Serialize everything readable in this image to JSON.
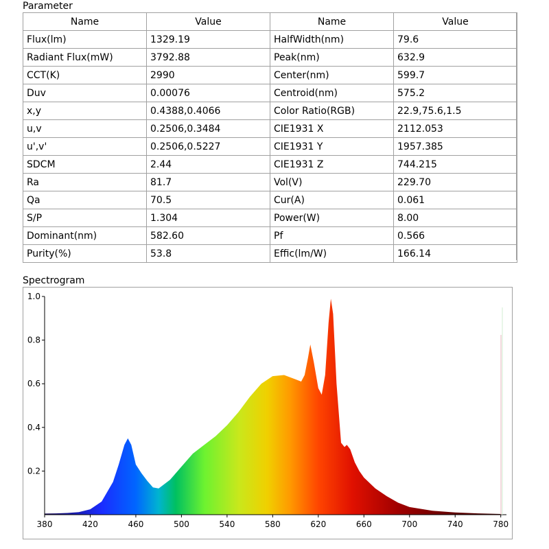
{
  "parameter_title": "Parameter",
  "spectrogram_title": "Spectrogram",
  "table": {
    "headers": [
      "Name",
      "Value",
      "Name",
      "Value"
    ],
    "rows": [
      [
        "Flux(lm)",
        "1329.19",
        "HalfWidth(nm)",
        "79.6"
      ],
      [
        "Radiant Flux(mW)",
        "3792.88",
        "Peak(nm)",
        "632.9"
      ],
      [
        "CCT(K)",
        "2990",
        "Center(nm)",
        "599.7"
      ],
      [
        "Duv",
        "0.00076",
        "Centroid(nm)",
        "575.2"
      ],
      [
        "x,y",
        "0.4388,0.4066",
        "Color Ratio(RGB)",
        "22.9,75.6,1.5"
      ],
      [
        "u,v",
        "0.2506,0.3484",
        "CIE1931 X",
        "2112.053"
      ],
      [
        "u',v'",
        "0.2506,0.5227",
        "CIE1931 Y",
        "1957.385"
      ],
      [
        "SDCM",
        "2.44",
        "CIE1931 Z",
        "744.215"
      ],
      [
        "Ra",
        "81.7",
        "Vol(V)",
        "229.70"
      ],
      [
        "Qa",
        "70.5",
        "Cur(A)",
        "0.061"
      ],
      [
        "S/P",
        "1.304",
        "Power(W)",
        "8.00"
      ],
      [
        "Dominant(nm)",
        "582.60",
        "Pf",
        "0.566"
      ],
      [
        "Purity(%)",
        "53.8",
        "Effic(lm/W)",
        "166.14"
      ]
    ]
  },
  "chart_data": {
    "type": "area",
    "title": "Spectrogram",
    "xlabel": "",
    "ylabel": "",
    "xlim": [
      380,
      785
    ],
    "ylim": [
      0,
      1.0
    ],
    "xticks": [
      380,
      420,
      460,
      500,
      540,
      580,
      620,
      660,
      700,
      740,
      780
    ],
    "yticks": [
      0.2,
      0.4,
      0.6,
      0.8,
      1.0
    ],
    "ytick_labels": [
      "0.2",
      "0.4",
      "0.6",
      "0.8",
      "1.0"
    ],
    "x": [
      380,
      390,
      400,
      410,
      420,
      430,
      440,
      445,
      450,
      453,
      456,
      460,
      465,
      470,
      475,
      480,
      490,
      500,
      510,
      520,
      530,
      540,
      550,
      560,
      570,
      580,
      590,
      600,
      605,
      608,
      611,
      613,
      616,
      620,
      623,
      626,
      629,
      631,
      633,
      636,
      640,
      643,
      645,
      648,
      652,
      656,
      660,
      670,
      680,
      690,
      700,
      720,
      740,
      760,
      780
    ],
    "values": [
      0.005,
      0.006,
      0.008,
      0.012,
      0.025,
      0.06,
      0.15,
      0.23,
      0.32,
      0.35,
      0.32,
      0.23,
      0.19,
      0.155,
      0.125,
      0.12,
      0.16,
      0.22,
      0.28,
      0.32,
      0.36,
      0.41,
      0.47,
      0.54,
      0.6,
      0.635,
      0.64,
      0.62,
      0.61,
      0.64,
      0.72,
      0.78,
      0.7,
      0.58,
      0.55,
      0.64,
      0.88,
      0.99,
      0.92,
      0.6,
      0.33,
      0.31,
      0.32,
      0.3,
      0.24,
      0.2,
      0.17,
      0.12,
      0.085,
      0.055,
      0.035,
      0.018,
      0.01,
      0.006,
      0.003
    ]
  }
}
